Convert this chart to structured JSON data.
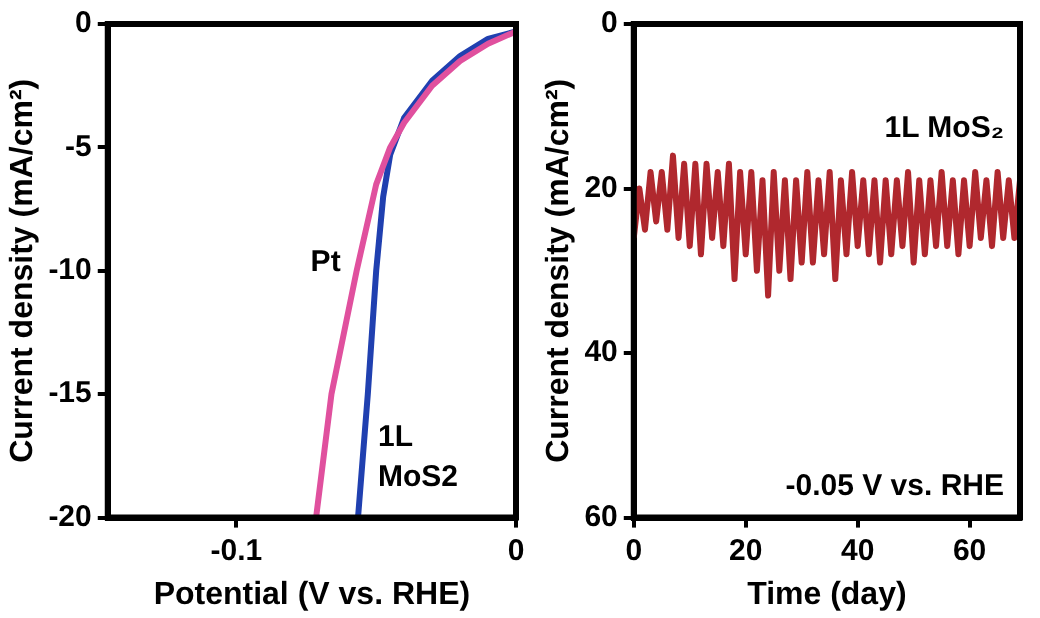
{
  "chart_data": [
    {
      "type": "line",
      "xlabel": "Potential (V vs. RHE)",
      "ylabel": "Current density (mA/cm²)",
      "xlim": [
        -0.146,
        0
      ],
      "xticks": [
        -0.1,
        0
      ],
      "ylim": [
        -20,
        0
      ],
      "yticks": [
        -20,
        -15,
        -10,
        -5,
        0
      ],
      "grid": false,
      "legend": false,
      "marker": "none",
      "series": [
        {
          "name": "Pt",
          "color": "#e0509e",
          "x": [
            0,
            -0.01,
            -0.02,
            -0.03,
            -0.04,
            -0.045,
            -0.05,
            -0.057,
            -0.066,
            -0.0715
          ],
          "values": [
            -0.3,
            -0.8,
            -1.5,
            -2.5,
            -4,
            -5,
            -6.5,
            -10,
            -15,
            -20
          ]
        },
        {
          "name": "1L MoS2",
          "color": "#2040b0",
          "x": [
            0,
            -0.01,
            -0.02,
            -0.03,
            -0.04,
            -0.045,
            -0.0475,
            -0.05,
            -0.053,
            -0.0565
          ],
          "values": [
            -0.3,
            -0.6,
            -1.3,
            -2.3,
            -3.8,
            -5.3,
            -7,
            -10,
            -15,
            -20
          ]
        }
      ]
    },
    {
      "type": "line",
      "xlabel": "Time (day)",
      "ylabel": "Current density (mA/cm²)",
      "xlim": [
        0,
        69
      ],
      "xticks": [
        0,
        20,
        40,
        60
      ],
      "ylim": [
        60,
        0
      ],
      "yticks": [
        0,
        20,
        40,
        60
      ],
      "grid": false,
      "legend": false,
      "marker": "none",
      "annotations": [
        "-0.05 V vs. RHE"
      ],
      "series": [
        {
          "name": "1L MoS₂",
          "color": "#b0282e",
          "x": [
            0,
            1,
            2,
            3,
            4,
            5,
            6,
            7,
            8,
            9,
            10,
            11,
            12,
            13,
            14,
            15,
            16,
            17,
            18,
            19,
            20,
            21,
            22,
            23,
            24,
            25,
            26,
            27,
            28,
            29,
            30,
            31,
            32,
            33,
            34,
            35,
            36,
            37,
            38,
            39,
            40,
            41,
            42,
            43,
            44,
            45,
            46,
            47,
            48,
            49,
            50,
            51,
            52,
            53,
            54,
            55,
            56,
            57,
            58,
            59,
            60,
            61,
            62,
            63,
            64,
            65,
            66,
            67,
            68,
            69
          ],
          "values": [
            26,
            20,
            25,
            18,
            24,
            18,
            25,
            16,
            26,
            17,
            27,
            17,
            28,
            17,
            26,
            18,
            27,
            17,
            31,
            18,
            28,
            18,
            30,
            19,
            33,
            18,
            30,
            19,
            31,
            19,
            29,
            18,
            29,
            19,
            28,
            18,
            31,
            19,
            28,
            18,
            27,
            19,
            28,
            19,
            29,
            19,
            28,
            19,
            27,
            18,
            29,
            19,
            28,
            19,
            27,
            18,
            27,
            19,
            28,
            19,
            27,
            18,
            26,
            19,
            27,
            18,
            26,
            19,
            26,
            19
          ]
        }
      ]
    }
  ]
}
